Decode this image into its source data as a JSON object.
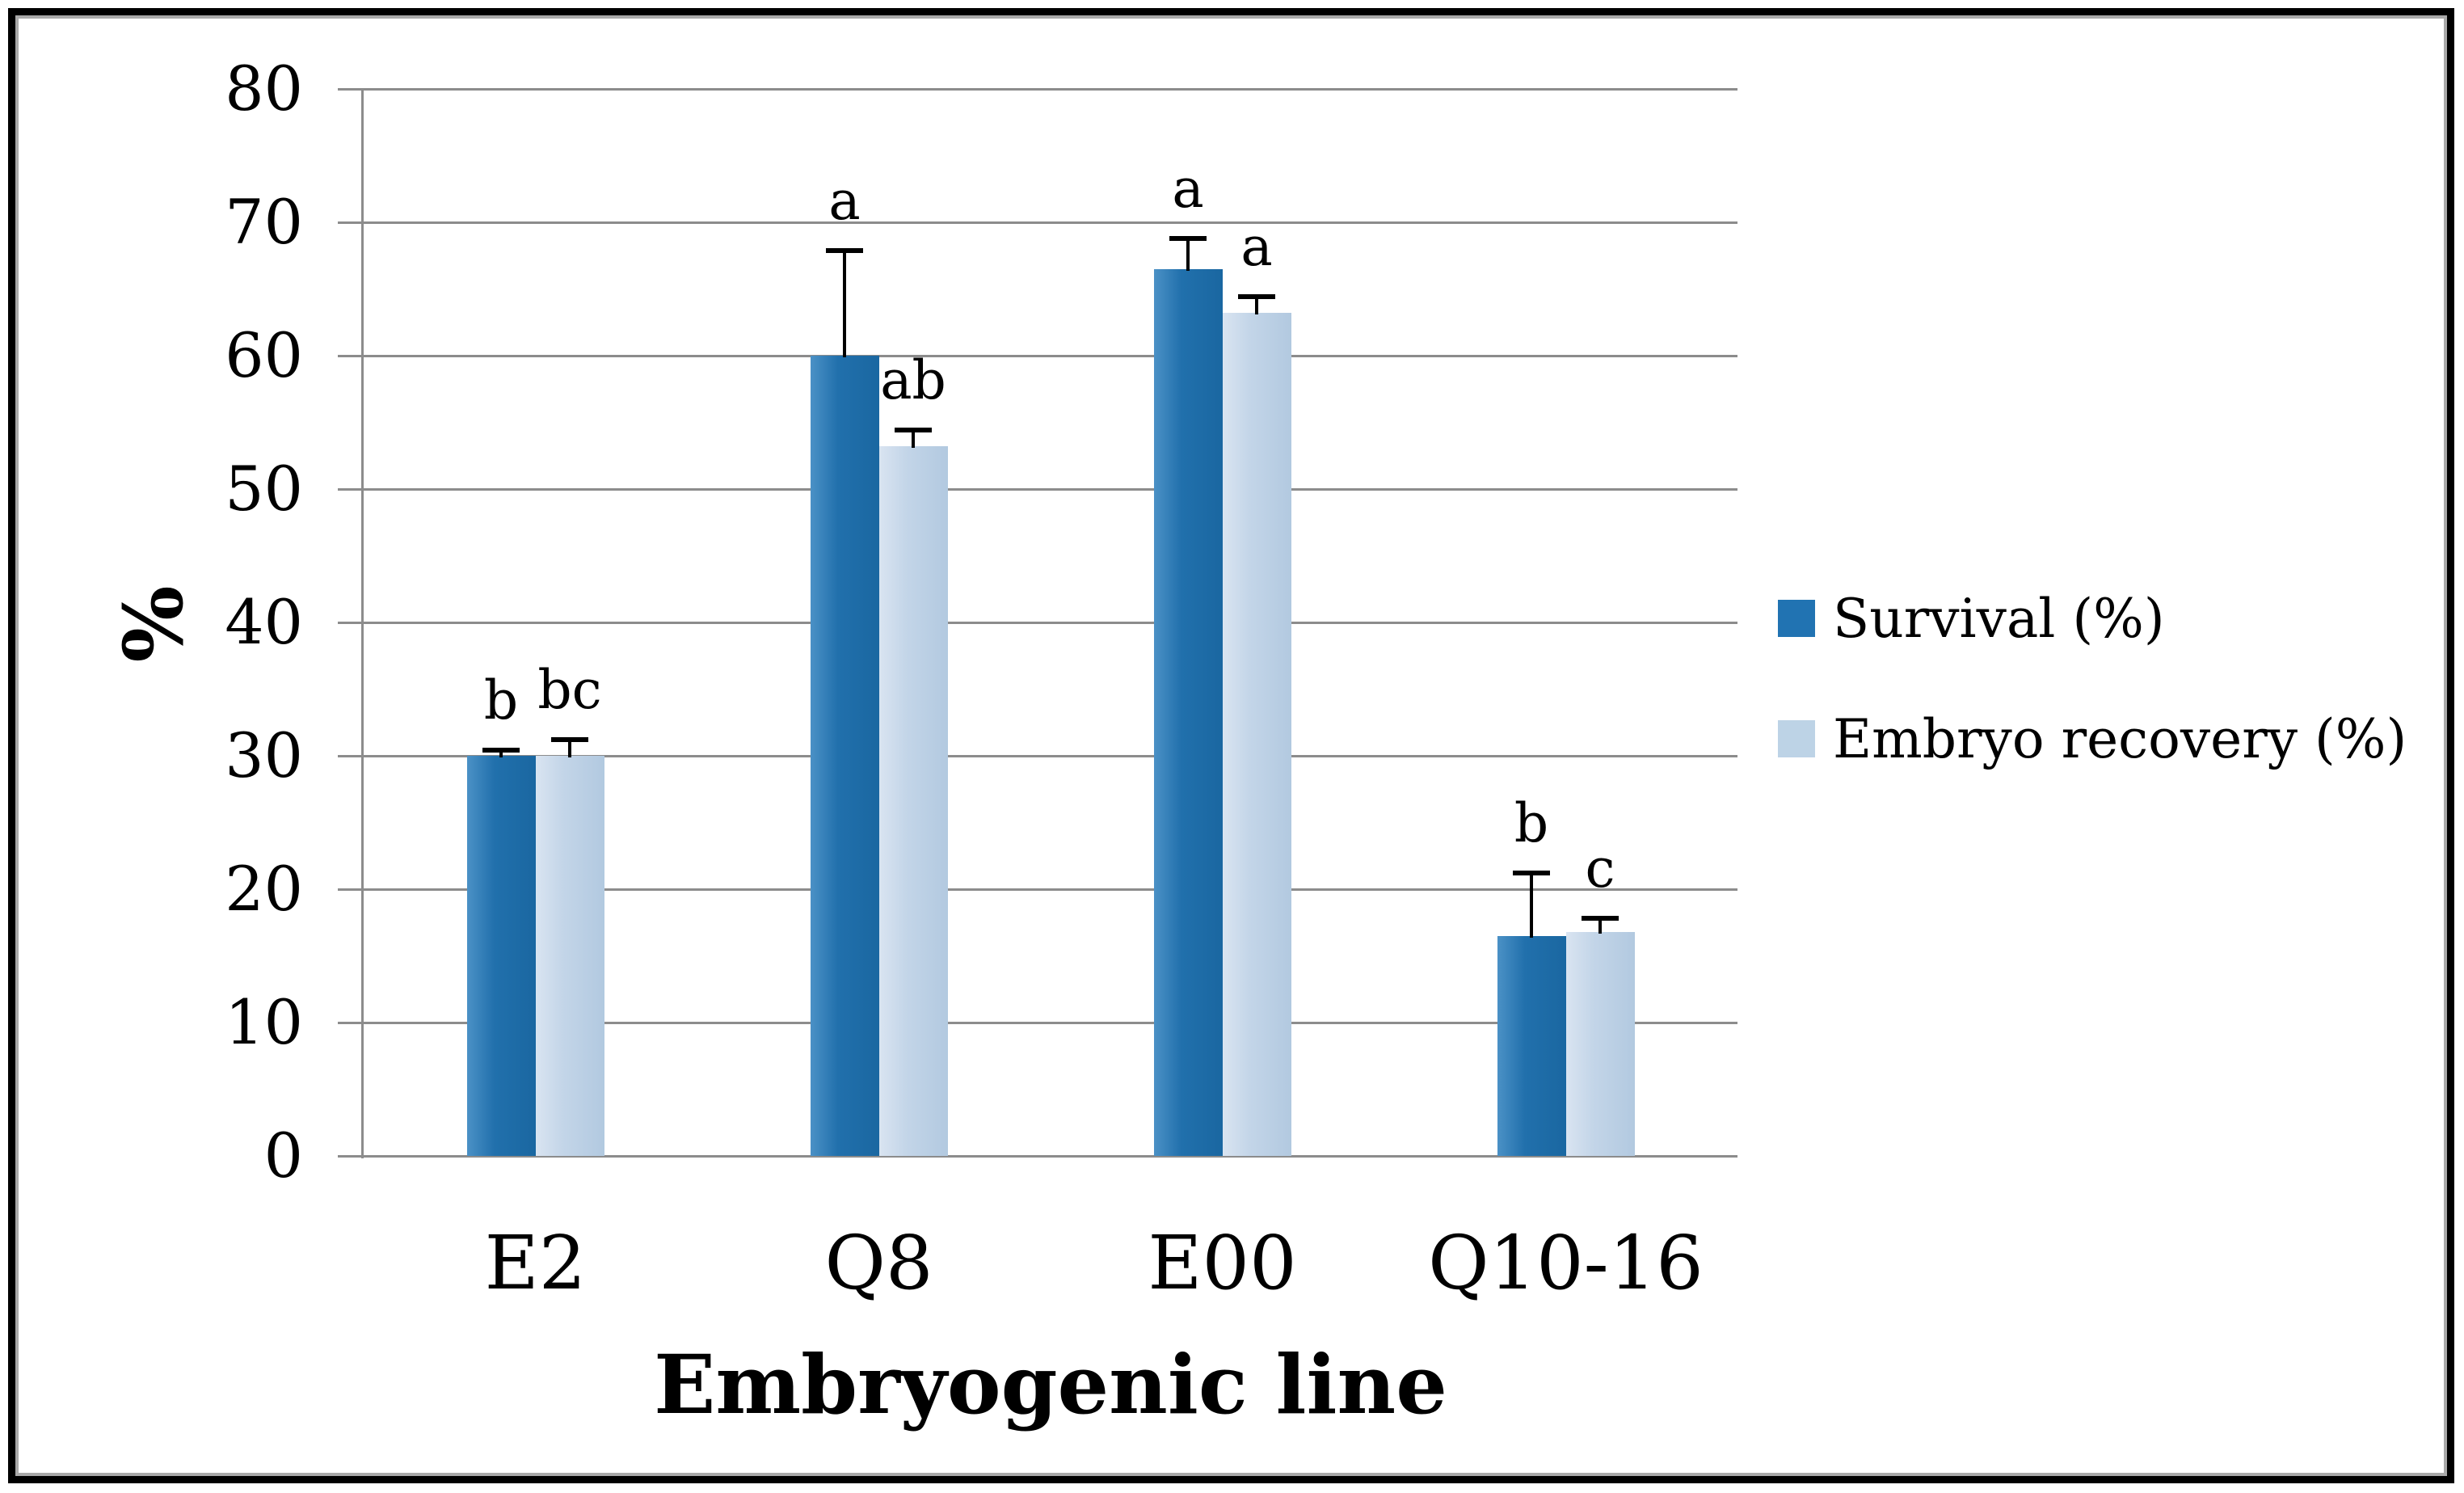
{
  "figure": {
    "background_color": "#ffffff",
    "frame_color": "#000000",
    "frame_inner_shadow_color": "#a9a9a9"
  },
  "chart_data": {
    "type": "bar",
    "title": "",
    "xlabel": "Embryogenic line",
    "ylabel": "%",
    "ylim": [
      0,
      80
    ],
    "yticks": [
      0,
      10,
      20,
      30,
      40,
      50,
      60,
      70,
      80
    ],
    "grid": true,
    "gridline_color": "#8c8c8c",
    "axis_color": "#8c8c8c",
    "error_bar_color": "#000000",
    "text_color": "#000000",
    "legend_position": "right",
    "categories": [
      "E2",
      "Q8",
      "E00",
      "Q10-16"
    ],
    "series": [
      {
        "name": "Survival (%)",
        "color": "#2173b2",
        "gradient": [
          "#4b91c6",
          "#2170ac",
          "#1a67a1"
        ],
        "values": [
          30,
          60,
          66.5,
          16.5
        ],
        "error_plus": [
          0.4,
          7.9,
          2.3,
          4.7
        ],
        "letters": [
          "b",
          "a",
          "a",
          "b"
        ]
      },
      {
        "name": "Embryo recovery (%)",
        "color": "#bdd3e6",
        "gradient": [
          "#d9e4f1",
          "#c3d5e8",
          "#b2c9e0"
        ],
        "values": [
          30,
          53.2,
          63.2,
          16.8
        ],
        "error_plus": [
          1.2,
          1.2,
          1.2,
          1.0
        ],
        "letters": [
          "bc",
          "ab",
          "a",
          "c"
        ]
      }
    ]
  }
}
